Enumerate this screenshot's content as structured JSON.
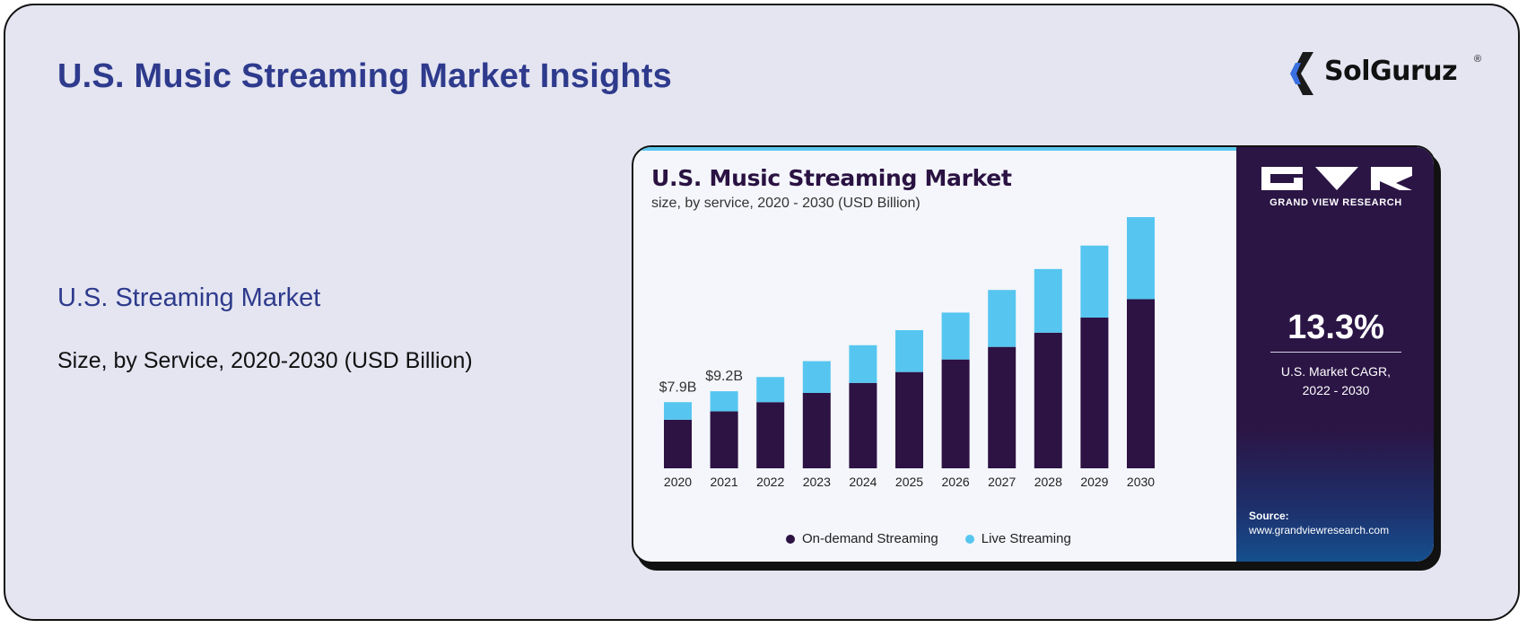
{
  "header": {
    "title": "U.S. Music Streaming Market Insights",
    "logo_text": "SolGuruz",
    "logo_mark": "®"
  },
  "side": {
    "title": "U.S. Streaming Market",
    "subtitle": "Size, by Service, 2020-2030 (USD Billion)"
  },
  "colors": {
    "on_demand": "#2d1244",
    "live": "#56c6f0",
    "title_blue": "#2e3a8c"
  },
  "panel": {
    "brand": "GRAND VIEW RESEARCH",
    "cagr_value": "13.3%",
    "cagr_label_line1": "U.S. Market CAGR,",
    "cagr_label_line2": "2022 - 2030",
    "source_label": "Source:",
    "source_url": "www.grandviewresearch.com"
  },
  "chart_data": {
    "type": "bar",
    "stacked": true,
    "title": "U.S. Music Streaming Market",
    "subtitle": "size, by service, 2020 - 2030 (USD Billion)",
    "categories": [
      "2020",
      "2021",
      "2022",
      "2023",
      "2024",
      "2025",
      "2026",
      "2027",
      "2028",
      "2029",
      "2030"
    ],
    "series": [
      {
        "name": "On-demand Streaming",
        "values": [
          5.8,
          6.8,
          7.9,
          9.0,
          10.2,
          11.5,
          13.0,
          14.5,
          16.2,
          18.0,
          20.2
        ]
      },
      {
        "name": "Live Streaming",
        "values": [
          2.1,
          2.4,
          3.0,
          3.8,
          4.5,
          5.0,
          5.6,
          6.8,
          7.6,
          8.6,
          9.8
        ]
      }
    ],
    "annotations": [
      {
        "category": "2020",
        "label": "$7.9B"
      },
      {
        "category": "2021",
        "label": "$9.2B"
      }
    ],
    "ylim": [
      0,
      30
    ],
    "legend": "bottom-center",
    "grid": false,
    "xlabel": "",
    "ylabel": ""
  }
}
